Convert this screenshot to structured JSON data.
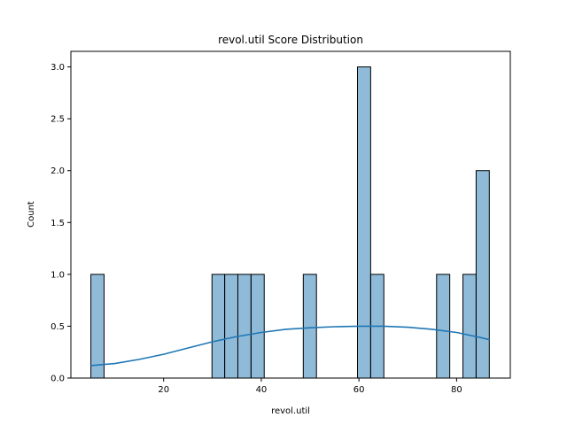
{
  "chart_data": {
    "type": "bar",
    "subtype": "histogram",
    "title": "revol.util Score Distribution",
    "xlabel": "revol.util",
    "ylabel": "Count",
    "xlim": [
      1.0,
      91.0
    ],
    "ylim": [
      0,
      3.15
    ],
    "xticks": [
      20,
      40,
      60,
      80
    ],
    "xtick_labels": [
      "20",
      "40",
      "60",
      "80"
    ],
    "yticks": [
      0,
      0.5,
      1.0,
      1.5,
      2.0,
      2.5,
      3.0
    ],
    "ytick_labels": [
      "0.0",
      "0.5",
      "1.0",
      "1.5",
      "2.0",
      "2.5",
      "3.0"
    ],
    "grid": false,
    "bar_color": "#1f77b4",
    "bar_alpha": 0.5,
    "bins": [
      {
        "x0": 5.1,
        "x1": 7.8,
        "count": 1
      },
      {
        "x0": 29.9,
        "x1": 32.5,
        "count": 1
      },
      {
        "x0": 32.5,
        "x1": 35.2,
        "count": 1
      },
      {
        "x0": 35.2,
        "x1": 37.9,
        "count": 1
      },
      {
        "x0": 37.9,
        "x1": 40.6,
        "count": 1
      },
      {
        "x0": 48.6,
        "x1": 51.3,
        "count": 1
      },
      {
        "x0": 59.7,
        "x1": 62.4,
        "count": 3
      },
      {
        "x0": 62.4,
        "x1": 65.1,
        "count": 1
      },
      {
        "x0": 75.9,
        "x1": 78.6,
        "count": 1
      },
      {
        "x0": 81.3,
        "x1": 84.0,
        "count": 1
      },
      {
        "x0": 84.0,
        "x1": 86.7,
        "count": 2
      }
    ],
    "kde": {
      "color": "#1f77b4",
      "x": [
        5.1,
        10,
        15,
        20,
        25,
        30,
        35,
        40,
        45,
        50,
        55,
        60,
        65,
        70,
        75,
        80,
        85,
        86.7
      ],
      "y": [
        0.12,
        0.14,
        0.18,
        0.23,
        0.29,
        0.35,
        0.4,
        0.44,
        0.47,
        0.485,
        0.495,
        0.5,
        0.5,
        0.49,
        0.47,
        0.44,
        0.39,
        0.37
      ]
    }
  }
}
